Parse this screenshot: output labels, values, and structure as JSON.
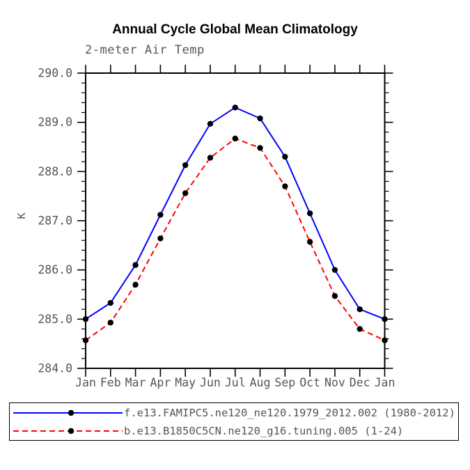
{
  "chart_data": {
    "type": "line",
    "title": "Annual Cycle Global Mean Climatology",
    "subtitle": "2-meter Air Temp",
    "xlabel": "",
    "ylabel": "K",
    "categories": [
      "Jan",
      "Feb",
      "Mar",
      "Apr",
      "May",
      "Jun",
      "Jul",
      "Aug",
      "Sep",
      "Oct",
      "Nov",
      "Dec",
      "Jan"
    ],
    "ylim": [
      284.0,
      290.0
    ],
    "ytick_step": 1.0,
    "yminor_step": 0.2,
    "ytick_labels": [
      "284.0",
      "285.0",
      "286.0",
      "287.0",
      "288.0",
      "289.0",
      "290.0"
    ],
    "grid": false,
    "legend_position": "bottom",
    "marker": {
      "shape": "circle",
      "color": "#000000",
      "radius": 4.2
    },
    "axis_color": "#000000",
    "label_color": "#555555",
    "series": [
      {
        "name": "f.e13.FAMIPC5.ne120_ne120.1979_2012.002 (1980-2012)",
        "color": "#0000ff",
        "line_style": "solid",
        "values": [
          285.0,
          285.33,
          286.1,
          287.12,
          288.13,
          288.97,
          289.3,
          289.08,
          288.3,
          287.15,
          286.0,
          285.2,
          285.0
        ]
      },
      {
        "name": "b.e13.B1850C5CN.ne120_g16.tuning.005 (1-24)",
        "color": "#ff0000",
        "line_style": "dashed",
        "values": [
          284.57,
          284.93,
          285.7,
          286.64,
          287.56,
          288.28,
          288.67,
          288.48,
          287.7,
          286.57,
          285.47,
          284.8,
          284.57
        ]
      }
    ]
  }
}
